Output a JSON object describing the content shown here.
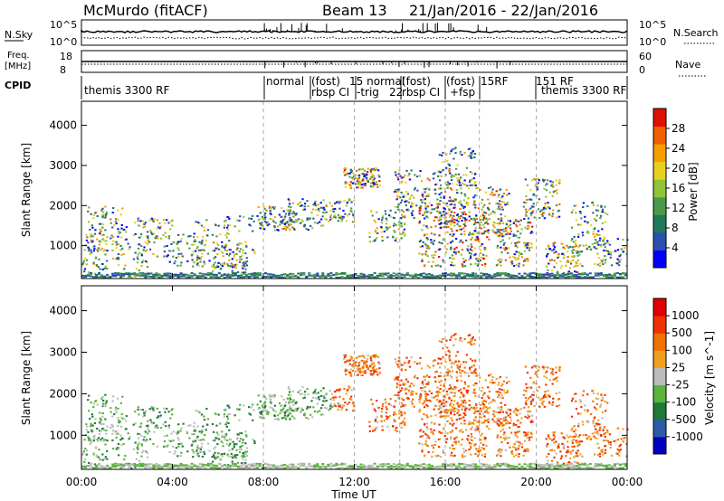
{
  "header": {
    "station": "McMurdo (fitACF)",
    "beam": "Beam 13",
    "date_range": "21/Jan/2016 - 22/Jan/2016"
  },
  "strip_panels": {
    "nsky_label": "N.Sky",
    "nsky_ticks": [
      "10^5",
      "10^0"
    ],
    "nsearch_label": "N.Search",
    "nsearch_ticks": [
      "10^5",
      "10^0"
    ],
    "freq_label_line1": "Freq.",
    "freq_label_line2": "[MHz]",
    "freq_ticks": [
      "18",
      "8"
    ],
    "nave_label": "Nave",
    "nave_ticks": [
      "60",
      "0"
    ],
    "cpid_label": "CPID",
    "cpid_texts": [
      "themis 3300 RF",
      "normal",
      "(fost)",
      "rbsp CI",
      "15 normal",
      "-trig",
      "22",
      "(fost)",
      "rbsp CI",
      "(fost)",
      "15RF",
      "+fsp",
      "151 RF",
      "themis 3300 RF"
    ]
  },
  "chart_data": [
    {
      "type": "heatmap",
      "name": "power",
      "ylabel": "Slant Range [km]",
      "yticks": [
        "1000",
        "2000",
        "3000",
        "4000"
      ],
      "ylim": [
        180,
        4600
      ],
      "xlim_hours": [
        0,
        24
      ],
      "colorbar_label": "Power [dB]",
      "colorbar_ticks": [
        "28",
        "24",
        "20",
        "16",
        "12",
        "8",
        "4"
      ],
      "colorbar_colors": [
        "#0000ff",
        "#2a4fb0",
        "#1f7a5a",
        "#4a9a4a",
        "#8fc43a",
        "#e8d020",
        "#f5a000",
        "#f06000",
        "#e01000"
      ]
    },
    {
      "type": "heatmap",
      "name": "velocity",
      "ylabel": "Slant Range [km]",
      "yticks": [
        "1000",
        "2000",
        "3000",
        "4000"
      ],
      "ylim": [
        180,
        4600
      ],
      "xlim_hours": [
        0,
        24
      ],
      "colorbar_label": "Velocity [m s^-1]",
      "colorbar_ticks": [
        "1000",
        "500",
        "100",
        "25",
        "-25",
        "-100",
        "-500",
        "-1000"
      ],
      "colorbar_colors": [
        "#0000c0",
        "#2a5ca8",
        "#1f7a3a",
        "#5ab53a",
        "#bcbcbc",
        "#f0a020",
        "#f07000",
        "#f03000",
        "#e00000"
      ]
    }
  ],
  "x_axis": {
    "label": "Time UT",
    "ticks": [
      "00:00",
      "04:00",
      "08:00",
      "12:00",
      "16:00",
      "20:00",
      "00:00"
    ]
  }
}
